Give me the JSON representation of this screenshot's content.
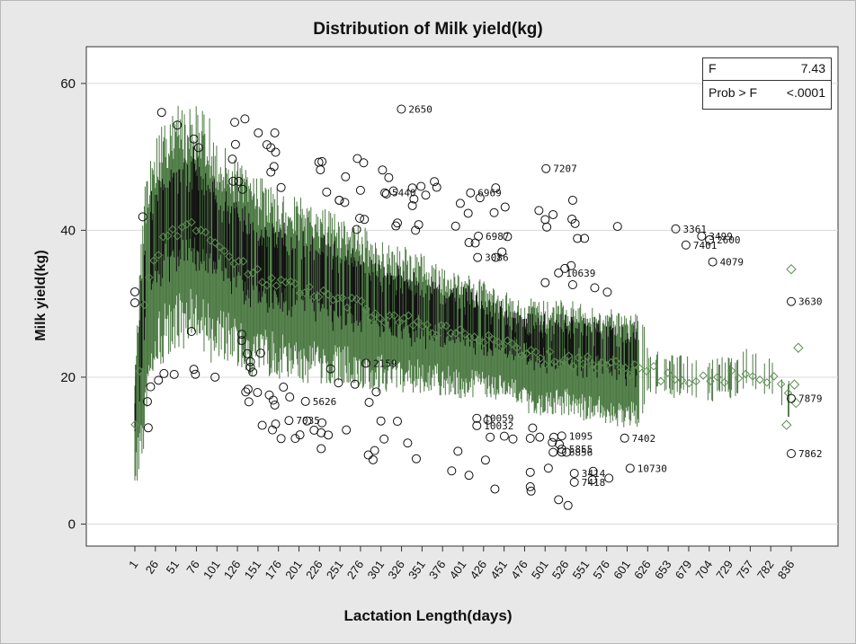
{
  "chart_data": {
    "type": "box",
    "title": "Distribution of Milk yield(kg)",
    "xlabel": "Lactation Length(days)",
    "ylabel": "Milk yield(kg)",
    "ylim": [
      -3,
      65
    ],
    "yticks": [
      0,
      20,
      40,
      60
    ],
    "xticks": [
      "1",
      "26",
      "51",
      "76",
      "101",
      "126",
      "151",
      "176",
      "201",
      "226",
      "251",
      "276",
      "301",
      "326",
      "351",
      "376",
      "401",
      "426",
      "451",
      "476",
      "501",
      "526",
      "551",
      "576",
      "601",
      "626",
      "653",
      "679",
      "704",
      "729",
      "757",
      "782",
      "836"
    ],
    "grid": "horizontal",
    "colors": {
      "whisker": "#4d7a44",
      "box": "#111111",
      "mean_marker": "#4d7a44",
      "outlier": "#111111",
      "background": "#ffffff"
    },
    "stats": {
      "f_label": "F",
      "f_value": "7.43",
      "p_label": "Prob > F",
      "p_value": "<.0001"
    },
    "mean_trend": [
      [
        1,
        14
      ],
      [
        5,
        18
      ],
      [
        15,
        32
      ],
      [
        26,
        37
      ],
      [
        51,
        40
      ],
      [
        76,
        41
      ],
      [
        101,
        38
      ],
      [
        126,
        36
      ],
      [
        151,
        34
      ],
      [
        176,
        33
      ],
      [
        201,
        32
      ],
      [
        226,
        31.5
      ],
      [
        251,
        30.5
      ],
      [
        276,
        30
      ],
      [
        301,
        29
      ],
      [
        326,
        28
      ],
      [
        351,
        27.5
      ],
      [
        376,
        27
      ],
      [
        401,
        26
      ],
      [
        426,
        25.5
      ],
      [
        451,
        25
      ],
      [
        476,
        24
      ],
      [
        501,
        23
      ],
      [
        526,
        22.5
      ],
      [
        551,
        22.5
      ],
      [
        576,
        22
      ],
      [
        601,
        21.5
      ],
      [
        626,
        21
      ],
      [
        653,
        21
      ],
      [
        679,
        20
      ],
      [
        704,
        20
      ],
      [
        729,
        19.5
      ],
      [
        757,
        20
      ],
      [
        782,
        21
      ],
      [
        810,
        20
      ],
      [
        836,
        16.5
      ]
    ],
    "outliers": [
      {
        "x": 340,
        "y": 56.5,
        "label": "2650"
      },
      {
        "x": 524,
        "y": 48.4,
        "label": "7207"
      },
      {
        "x": 319,
        "y": 45.1,
        "label": "5440"
      },
      {
        "x": 428,
        "y": 45.1,
        "label": "6969"
      },
      {
        "x": 689,
        "y": 40.2,
        "label": "3361"
      },
      {
        "x": 438,
        "y": 39.2,
        "label": "6987"
      },
      {
        "x": 722,
        "y": 39.2,
        "label": "3499"
      },
      {
        "x": 732,
        "y": 38.7,
        "label": "2600"
      },
      {
        "x": 702,
        "y": 38.0,
        "label": "7401"
      },
      {
        "x": 437,
        "y": 36.3,
        "label": "3086"
      },
      {
        "x": 736,
        "y": 35.7,
        "label": "4079"
      },
      {
        "x": 540,
        "y": 34.2,
        "label": "10639"
      },
      {
        "x": 915,
        "y": 30.3,
        "label": "3630"
      },
      {
        "x": 295,
        "y": 21.9,
        "label": "2159"
      },
      {
        "x": 880,
        "y": 17.1,
        "label": "7879"
      },
      {
        "x": 218,
        "y": 16.7,
        "label": "5626"
      },
      {
        "x": 197,
        "y": 14.1,
        "label": "7035"
      },
      {
        "x": 436,
        "y": 14.4,
        "label": "10059"
      },
      {
        "x": 436,
        "y": 13.4,
        "label": "10032"
      },
      {
        "x": 544,
        "y": 12.0,
        "label": "1095"
      },
      {
        "x": 624,
        "y": 11.7,
        "label": "7402"
      },
      {
        "x": 544,
        "y": 10.2,
        "label": "5855"
      },
      {
        "x": 544,
        "y": 9.8,
        "label": "6856"
      },
      {
        "x": 880,
        "y": 9.6,
        "label": "7862"
      },
      {
        "x": 631,
        "y": 7.6,
        "label": "10730"
      },
      {
        "x": 560,
        "y": 6.9,
        "label": "3414"
      },
      {
        "x": 560,
        "y": 5.7,
        "label": "7418"
      }
    ]
  }
}
